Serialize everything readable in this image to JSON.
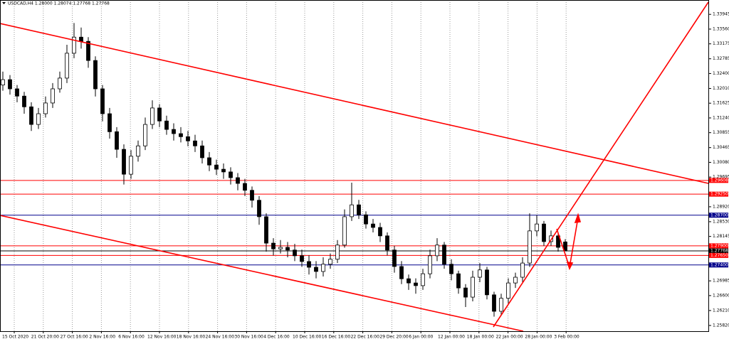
{
  "chart_data": {
    "type": "candlestick",
    "title": "USDCAD,H4  1.28000 1.28074 1.27768 1.27768",
    "ylim": [
      1.2567,
      1.3432
    ],
    "yticks": [
      1.33945,
      {
        "value": 1.3356,
        "label": "1.33560"
      },
      1.33175,
      1.32785,
      {
        "value": 1.324,
        "label": "1.32400"
      },
      {
        "value": 1.3201,
        "label": "1.32010"
      },
      1.31625,
      {
        "value": 1.3124,
        "label": "1.31240"
      },
      1.30855,
      1.30465,
      {
        "value": 1.3008,
        "label": "1.30080"
      },
      1.29695,
      {
        "value": 1.2892,
        "label": "1.28920"
      },
      {
        "value": 1.2853,
        "label": "1.28530"
      },
      1.28145,
      1.26985,
      {
        "value": 1.266,
        "label": "1.26600"
      },
      {
        "value": 1.2621,
        "label": "1.26210"
      },
      {
        "value": 1.2582,
        "label": "1.25820"
      }
    ],
    "x_labels": [
      "15 Oct 2020",
      "21 Oct 20:00",
      "27 Oct 16:00",
      "2 Nov 16:00",
      "6 Nov 16:00",
      "12 Nov 16:00",
      "18 Nov 16:00",
      "24 Nov 16:00",
      "30 Nov 16:00",
      "4 Dec 16:00",
      "10 Dec 16:00",
      "16 Dec 16:00",
      "22 Dec 16:00",
      "29 Dec 20:00",
      "6 Jan 00:00",
      "12 Jan 00:00",
      "18 Jan 00:00",
      "22 Jan 00:00",
      "28 Jan 00:00",
      "3 Feb 00:00"
    ],
    "grid": true,
    "color": "#000000",
    "open": [
      1.321,
      1.3224,
      1.32,
      1.3181,
      1.3153,
      1.3107,
      1.3135,
      1.3163,
      1.32,
      1.3228,
      1.3293,
      1.3335,
      1.3324,
      1.3274,
      1.32,
      1.3135,
      1.3088,
      1.3042,
      1.2977,
      1.3024,
      1.3051,
      1.3107,
      1.315,
      1.3116,
      1.3094,
      1.3083,
      1.3075,
      1.3064,
      1.3051,
      1.302,
      1.3001,
      1.299,
      1.2983,
      1.2968,
      1.2953,
      1.2935,
      1.2909,
      1.2866,
      1.2797,
      1.2782,
      1.2786,
      1.2779,
      1.2764,
      1.2749,
      1.2734,
      1.2723,
      1.2742,
      1.2755,
      1.2792,
      1.2866,
      1.2897,
      1.2871,
      1.2847,
      1.2838,
      1.2816,
      1.2779,
      1.2736,
      1.2704,
      1.2693,
      1.2686,
      1.2717,
      1.2764,
      1.2792,
      1.2742,
      1.2717,
      1.268,
      1.2656,
      1.2708,
      1.2727,
      1.2662,
      1.2619,
      1.2653,
      1.2693,
      1.2708,
      1.2745,
      1.2829,
      1.2847,
      1.2801,
      1.2816,
      1.28
    ],
    "high": [
      1.3245,
      1.3236,
      1.321,
      1.3192,
      1.3165,
      1.315,
      1.318,
      1.3215,
      1.3245,
      1.3315,
      1.3372,
      1.336,
      1.3335,
      1.3285,
      1.321,
      1.315,
      1.31,
      1.3055,
      1.304,
      1.3065,
      1.3125,
      1.317,
      1.316,
      1.313,
      1.311,
      1.31,
      1.309,
      1.308,
      1.3065,
      1.3035,
      1.3015,
      1.3005,
      1.2995,
      1.298,
      1.2965,
      1.2945,
      1.292,
      1.2875,
      1.281,
      1.2805,
      1.28,
      1.2795,
      1.278,
      1.2765,
      1.275,
      1.276,
      1.277,
      1.2805,
      1.2885,
      1.2955,
      1.291,
      1.288,
      1.286,
      1.285,
      1.2825,
      1.279,
      1.275,
      1.2715,
      1.2705,
      1.273,
      1.278,
      1.281,
      1.28,
      1.2755,
      1.2725,
      1.269,
      1.2725,
      1.2745,
      1.2735,
      1.267,
      1.2665,
      1.2705,
      1.272,
      1.276,
      1.2875,
      1.287,
      1.2855,
      1.283,
      1.2825,
      1.28074
    ],
    "low": [
      1.3195,
      1.3185,
      1.3165,
      1.3135,
      1.309,
      1.3095,
      1.3125,
      1.315,
      1.319,
      1.3215,
      1.328,
      1.3305,
      1.3255,
      1.318,
      1.3115,
      1.307,
      1.302,
      1.295,
      1.2965,
      1.301,
      1.304,
      1.3095,
      1.31,
      1.308,
      1.3065,
      1.306,
      1.305,
      1.3035,
      1.3005,
      1.2985,
      1.2975,
      1.2965,
      1.295,
      1.2935,
      1.292,
      1.289,
      1.2845,
      1.2775,
      1.2765,
      1.277,
      1.276,
      1.275,
      1.2735,
      1.2715,
      1.2705,
      1.271,
      1.273,
      1.2745,
      1.2785,
      1.2855,
      1.286,
      1.2835,
      1.2825,
      1.28,
      1.2765,
      1.272,
      1.269,
      1.2675,
      1.2665,
      1.2675,
      1.2705,
      1.275,
      1.273,
      1.27,
      1.2665,
      1.263,
      1.2645,
      1.2695,
      1.265,
      1.2605,
      1.261,
      1.264,
      1.268,
      1.2695,
      1.2735,
      1.2815,
      1.279,
      1.279,
      1.2775,
      1.27768
    ],
    "close": [
      1.3224,
      1.32,
      1.3181,
      1.3153,
      1.3107,
      1.3135,
      1.3163,
      1.32,
      1.3228,
      1.3293,
      1.3335,
      1.3324,
      1.3274,
      1.32,
      1.3135,
      1.3088,
      1.3042,
      1.2977,
      1.3024,
      1.3051,
      1.3107,
      1.315,
      1.3116,
      1.3094,
      1.3083,
      1.3075,
      1.3064,
      1.3051,
      1.302,
      1.3001,
      1.299,
      1.2983,
      1.2968,
      1.2953,
      1.2935,
      1.2909,
      1.2866,
      1.2797,
      1.2782,
      1.2786,
      1.2779,
      1.2764,
      1.2749,
      1.2734,
      1.2723,
      1.2742,
      1.2755,
      1.2792,
      1.2866,
      1.2897,
      1.2871,
      1.2847,
      1.2838,
      1.2816,
      1.2779,
      1.2736,
      1.2704,
      1.2693,
      1.2686,
      1.2717,
      1.2764,
      1.2792,
      1.2742,
      1.2717,
      1.268,
      1.2656,
      1.2708,
      1.2727,
      1.2662,
      1.2619,
      1.2653,
      1.2693,
      1.2708,
      1.2745,
      1.2829,
      1.2847,
      1.2801,
      1.2816,
      1.2786,
      1.27768
    ],
    "levels": {
      "values": [
        1.29608,
        1.2925,
        1.287,
        1.279,
        1.27768,
        1.2765,
        1.274
      ],
      "value_labels": [
        "1.29608",
        "1.29250",
        "1.28700",
        "1.27900",
        "1.27768",
        "1.27650",
        "1.27400"
      ],
      "colors": [
        "#ff0000",
        "#ff0000",
        "#00008b",
        "#ff0000",
        "#000000",
        "#ff0000",
        "#00008b"
      ]
    }
  }
}
